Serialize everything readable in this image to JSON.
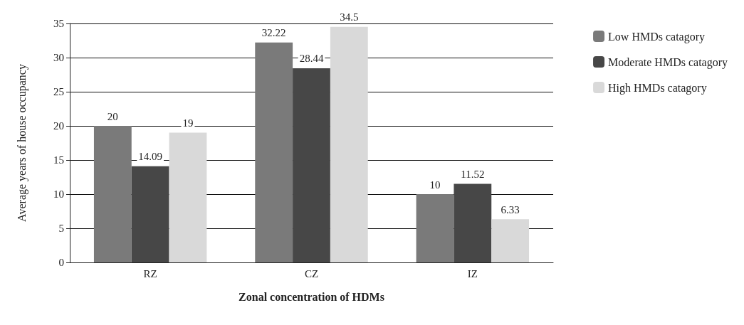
{
  "chart_data": {
    "type": "bar",
    "xlabel": "Zonal concentration of HDMs",
    "ylabel": "Average years of house occupancy",
    "categories": [
      "RZ",
      "CZ",
      "IZ"
    ],
    "series": [
      {
        "name": "Low HMDs catagory",
        "color": "#7a7a7a",
        "values": [
          20,
          32.22,
          10
        ]
      },
      {
        "name": "Moderate HMDs catagory",
        "color": "#474747",
        "values": [
          14.09,
          28.44,
          11.52
        ]
      },
      {
        "name": "High HMDs catagory",
        "color": "#d9d9d9",
        "values": [
          19,
          34.5,
          6.33
        ]
      }
    ],
    "ylim": [
      0,
      35
    ],
    "yticks": [
      0,
      5,
      10,
      15,
      20,
      25,
      30,
      35
    ],
    "grid": "y",
    "legend": "top right",
    "data_labels": true
  }
}
